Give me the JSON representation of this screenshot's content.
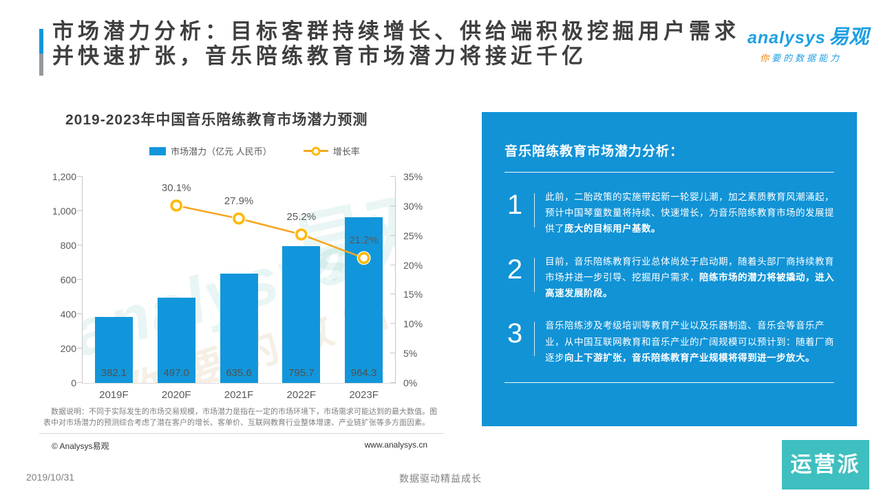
{
  "header": {
    "title_line1": "市场潜力分析：目标客群持续增长、供给端积极挖掘用户需求",
    "title_line2": "并快速扩张，音乐陪练教育市场潜力将接近千亿",
    "logo_latin": "analysys",
    "logo_cn": "易观",
    "tagline_first": "你",
    "tagline_rest": "要的数据能力"
  },
  "chart_data": {
    "type": "bar",
    "title": "2019-2023年中国音乐陪练教育市场潜力预测",
    "categories": [
      "2019F",
      "2020F",
      "2021F",
      "2022F",
      "2023F"
    ],
    "series": [
      {
        "name": "市场潜力（亿元 人民币）",
        "type": "bar",
        "values": [
          382.1,
          497.0,
          635.6,
          795.7,
          964.3
        ],
        "value_labels": [
          "382.1",
          "497.0",
          "635.6",
          "795.7",
          "964.3"
        ],
        "color": "#1296DB",
        "axis": "left"
      },
      {
        "name": "增长率",
        "type": "line",
        "values": [
          null,
          30.1,
          27.9,
          25.2,
          21.2
        ],
        "labels": [
          "",
          "30.1%",
          "27.9%",
          "25.2%",
          "21.2%"
        ],
        "unit": "%",
        "color": "#F5A623",
        "marker_color": "#FFB900",
        "axis": "right"
      }
    ],
    "left_axis": {
      "range": [
        0,
        1200
      ],
      "ticks": [
        "0",
        "200",
        "400",
        "600",
        "800",
        "1,000",
        "1,200"
      ]
    },
    "right_axis": {
      "range": [
        0,
        35
      ],
      "ticks": [
        "0%",
        "5%",
        "10%",
        "15%",
        "20%",
        "25%",
        "30%",
        "35%"
      ]
    },
    "legend_position": "top",
    "grid": false
  },
  "watermark": {
    "script": "analysys",
    "cn": "易观",
    "extra": "你要的数据能力"
  },
  "footnote": "数据说明：不同于实际发生的市场交易规模，市场潜力是指在一定的市场环境下，市场需求可能达到的最大数值。图表中对市场潜力的预测综合考虑了潜在客户的增长、客单价、互联网教育行业整体增速、产业链扩张等多方面因素。",
  "panel": {
    "title": "音乐陪练教育市场潜力分析：",
    "points": [
      {
        "num": "1",
        "normal": "此前，二胎政策的实施带起新一轮婴儿潮，加之素质教育风潮涌起，预计中国琴童数量将持续、快速增长，为音乐陪练教育市场的发展提供了",
        "bold": "庞大的目标用户基数。"
      },
      {
        "num": "2",
        "normal": "目前，音乐陪练教育行业总体尚处于启动期，随着头部厂商持续教育市场并进一步引导、挖掘用户需求，",
        "bold": "陪练市场的潜力将被撬动，进入高速发展阶段。"
      },
      {
        "num": "3",
        "normal": "音乐陪练涉及考级培训等教育产业以及乐器制造、音乐会等音乐产业，从中国互联网教育和音乐产业的广阔规模可以预计到：随着厂商逐步",
        "bold": "向上下游扩张，音乐陪练教育产业规模将得到进一步放大。"
      }
    ]
  },
  "footer": {
    "copyright": "© Analysys易观",
    "website": "www.analysys.cn",
    "date": "2019/10/31",
    "slogan": "数据驱动精益成长",
    "badge": "运营派"
  },
  "colors": {
    "bar": "#1296DB",
    "line": "#F5A623",
    "marker": "#FFB900",
    "panel_bg": "#1193D6",
    "accent_blue": "#1296DB",
    "accent_gray": "#95999E",
    "badge_bg": "#3FBFBF",
    "logo_blue": "#1E9FE3",
    "tagline_orange": "#F08300"
  }
}
